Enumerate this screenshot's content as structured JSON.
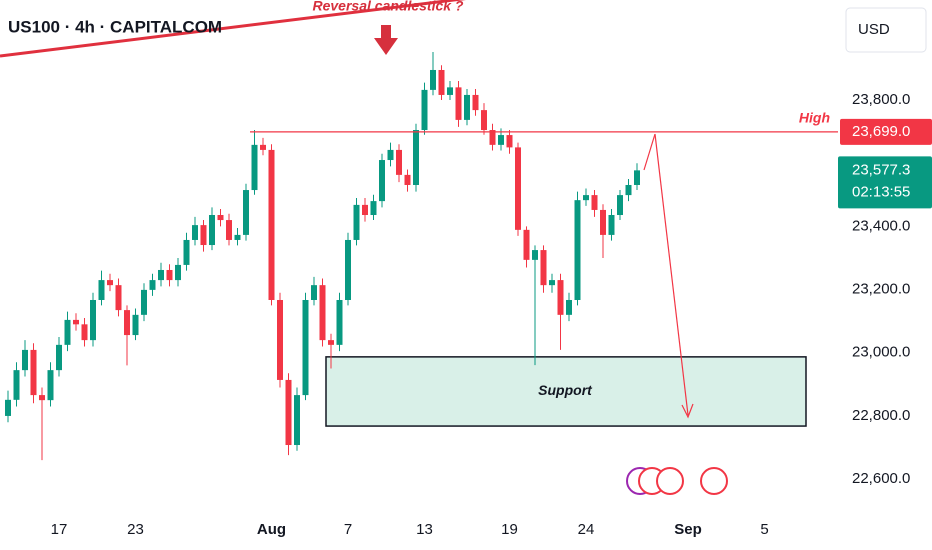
{
  "chart_data": {
    "type": "candlestick",
    "title": "US100 · 4h · CAPITALCOM",
    "currency": "USD",
    "up_color": "#089981",
    "down_color": "#f23645",
    "grid": false,
    "ylim": [
      22486.5,
      24116.5
    ],
    "yticks": [
      {
        "value": 22600,
        "label": "22,600.0"
      },
      {
        "value": 22800,
        "label": "22,800.0"
      },
      {
        "value": 23000,
        "label": "23,000.0"
      },
      {
        "value": 23200,
        "label": "23,200.0"
      },
      {
        "value": 23400,
        "label": "23,400.0"
      },
      {
        "value": 23800,
        "label": "23,800.0"
      }
    ],
    "categories": [
      null,
      null,
      null,
      null,
      null,
      null,
      "17",
      null,
      null,
      null,
      null,
      null,
      null,
      null,
      null,
      "23",
      null,
      null,
      null,
      null,
      null,
      null,
      null,
      null,
      null,
      null,
      null,
      null,
      null,
      null,
      null,
      "Aug",
      null,
      null,
      null,
      null,
      null,
      null,
      null,
      null,
      "7",
      null,
      null,
      null,
      null,
      null,
      null,
      null,
      null,
      "13",
      null,
      null,
      null,
      null,
      null,
      null,
      null,
      null,
      null,
      "19",
      null,
      null,
      null,
      null,
      null,
      null,
      null,
      null,
      "24",
      null,
      null,
      null,
      null,
      null,
      null,
      null,
      null,
      null,
      null,
      null,
      "Sep",
      null,
      null,
      null,
      null,
      null,
      null,
      null,
      null,
      "5"
    ],
    "open": [
      22800,
      22851,
      22945,
      23009,
      22866,
      22850,
      22945,
      23025,
      23104,
      23090,
      23040,
      23167,
      23230,
      23214,
      23135,
      23056,
      23120,
      23199,
      23230,
      23262,
      23230,
      23278,
      23357,
      23404,
      23341,
      23436,
      23420,
      23357,
      23373,
      23515,
      23658,
      23642,
      23167,
      22914,
      22708,
      22866,
      23167,
      23214,
      23040,
      23025,
      23167,
      23357,
      23468,
      23436,
      23480,
      23610,
      23642,
      23563,
      23531,
      23705,
      23832,
      23895,
      23816,
      23840,
      23737,
      23816,
      23768,
      23705,
      23658,
      23689,
      23650,
      23389,
      23294,
      23325,
      23214,
      23230,
      23120,
      23167,
      23483,
      23499,
      23452,
      23373,
      23436,
      23499,
      23531,
      null,
      null,
      null,
      null,
      null,
      null,
      null,
      null,
      null,
      null,
      null,
      null,
      null,
      null,
      null
    ],
    "high": [
      22880,
      22970,
      23040,
      23030,
      22890,
      22970,
      23050,
      23130,
      23125,
      23110,
      23190,
      23260,
      23250,
      23235,
      23150,
      23140,
      23220,
      23250,
      23285,
      23280,
      23300,
      23380,
      23430,
      23420,
      23460,
      23455,
      23440,
      23395,
      23535,
      23705,
      23680,
      23660,
      23190,
      22935,
      22890,
      23190,
      23240,
      23235,
      23060,
      23190,
      23380,
      23490,
      23490,
      23500,
      23630,
      23665,
      23660,
      23580,
      23725,
      23855,
      23952,
      23910,
      23860,
      23860,
      23835,
      23835,
      23790,
      23725,
      23710,
      23705,
      23665,
      23400,
      23340,
      23340,
      23250,
      23250,
      23190,
      23510,
      23520,
      23515,
      23470,
      23455,
      23515,
      23550,
      23600,
      null,
      null,
      null,
      null,
      null,
      null,
      null,
      null,
      null,
      null,
      null,
      null,
      null,
      null,
      null
    ],
    "low": [
      22780,
      22830,
      22925,
      22840,
      22660,
      22830,
      22925,
      23005,
      23070,
      23020,
      23020,
      23150,
      23195,
      23115,
      22960,
      23040,
      23100,
      23180,
      23210,
      23210,
      23210,
      23260,
      23340,
      23320,
      23325,
      23400,
      23340,
      23340,
      23355,
      23500,
      23625,
      23150,
      22890,
      22676,
      22690,
      22850,
      23150,
      23020,
      22950,
      23005,
      23150,
      23340,
      23415,
      23420,
      23460,
      23590,
      23540,
      23510,
      23510,
      23690,
      23815,
      23800,
      23800,
      23715,
      23720,
      23750,
      23690,
      23640,
      23640,
      23630,
      23370,
      23270,
      22961,
      23190,
      23190,
      23009,
      23100,
      23150,
      23465,
      23430,
      23300,
      23355,
      23420,
      23480,
      23515,
      null,
      null,
      null,
      null,
      null,
      null,
      null,
      null,
      null,
      null,
      null,
      null,
      null,
      null,
      null
    ],
    "close": [
      22851,
      22945,
      23009,
      22866,
      22850,
      22945,
      23025,
      23104,
      23090,
      23040,
      23167,
      23230,
      23214,
      23135,
      23056,
      23120,
      23199,
      23230,
      23262,
      23230,
      23278,
      23357,
      23404,
      23341,
      23436,
      23420,
      23357,
      23373,
      23515,
      23658,
      23642,
      23167,
      22914,
      22708,
      22866,
      23167,
      23214,
      23040,
      23025,
      23167,
      23357,
      23468,
      23436,
      23480,
      23610,
      23642,
      23563,
      23531,
      23705,
      23832,
      23895,
      23816,
      23840,
      23737,
      23816,
      23768,
      23705,
      23658,
      23689,
      23650,
      23389,
      23294,
      23325,
      23214,
      23230,
      23120,
      23167,
      23483,
      23499,
      23452,
      23373,
      23436,
      23499,
      23531,
      23577.3,
      null,
      null,
      null,
      null,
      null,
      null,
      null,
      null,
      null,
      null,
      null,
      null,
      null,
      null,
      null
    ],
    "high_level": {
      "label": "High",
      "value": 23699,
      "value_label": "23,699.0",
      "color": "#f23645"
    },
    "last_price": {
      "value": 23577.3,
      "value_label": "23,577.3",
      "countdown": "02:13:55",
      "color": "#089981"
    },
    "support": {
      "label": "Support",
      "top": 22987,
      "bottom": 22768,
      "color": "#d9f0e8"
    },
    "annotation": "Reversal candlestick ?"
  }
}
